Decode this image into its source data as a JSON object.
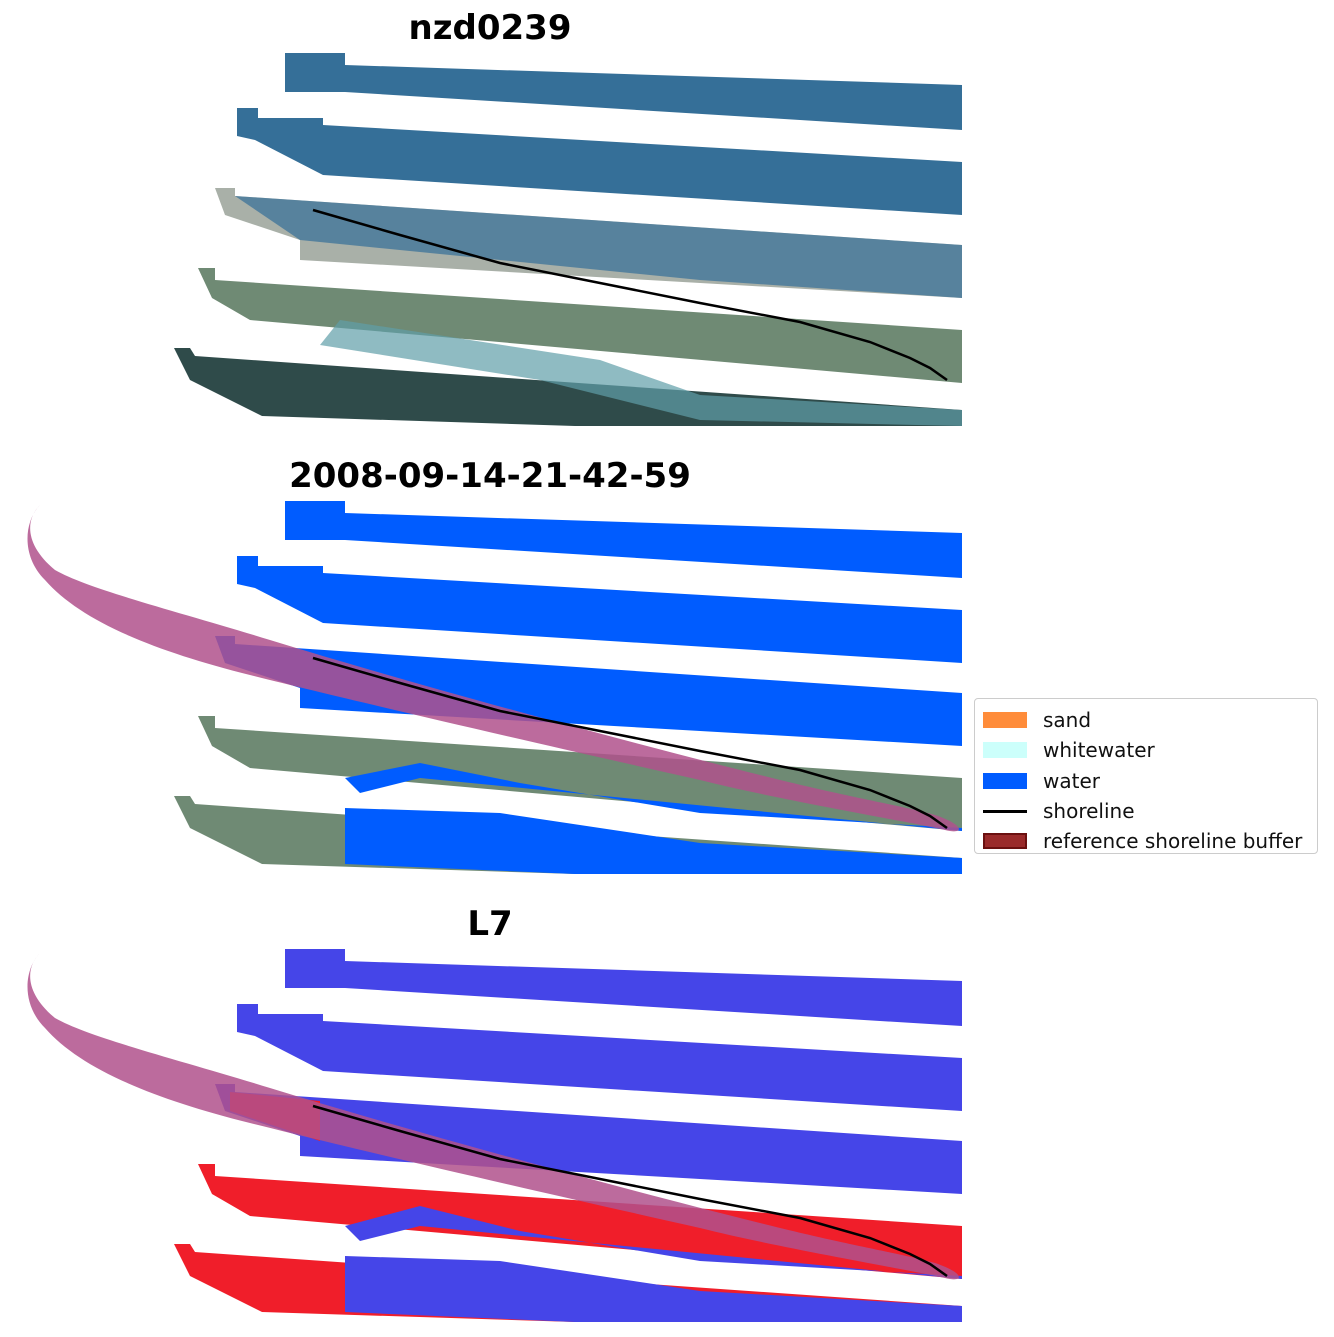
{
  "panels": [
    {
      "title": "nzd0239",
      "kind": "rgb"
    },
    {
      "title": "2008-09-14-21-42-59",
      "kind": "classified"
    },
    {
      "title": "L7",
      "kind": "index"
    }
  ],
  "legend": {
    "items": [
      {
        "label": "sand",
        "color": "#ff8c3a",
        "type": "patch"
      },
      {
        "label": "whitewater",
        "color": "#ccfffb",
        "type": "patch"
      },
      {
        "label": "water",
        "color": "#005cff",
        "type": "patch"
      },
      {
        "label": "shoreline",
        "color": "#000000",
        "type": "line"
      },
      {
        "label": "reference shoreline buffer",
        "color": "#9a2a2a",
        "type": "patch",
        "edge": "#6b1010"
      }
    ]
  },
  "colors": {
    "rgb_water": "#356f98",
    "rgb_land": "#6f8a74",
    "rgb_beach": "#a9b0a8",
    "rgb_forest": "#2f4b4a",
    "class_water": "#005cff",
    "index_water": "#4545e8",
    "index_land": "#f01e2a",
    "buffer": "#b0518c",
    "shoreline": "#000000"
  }
}
